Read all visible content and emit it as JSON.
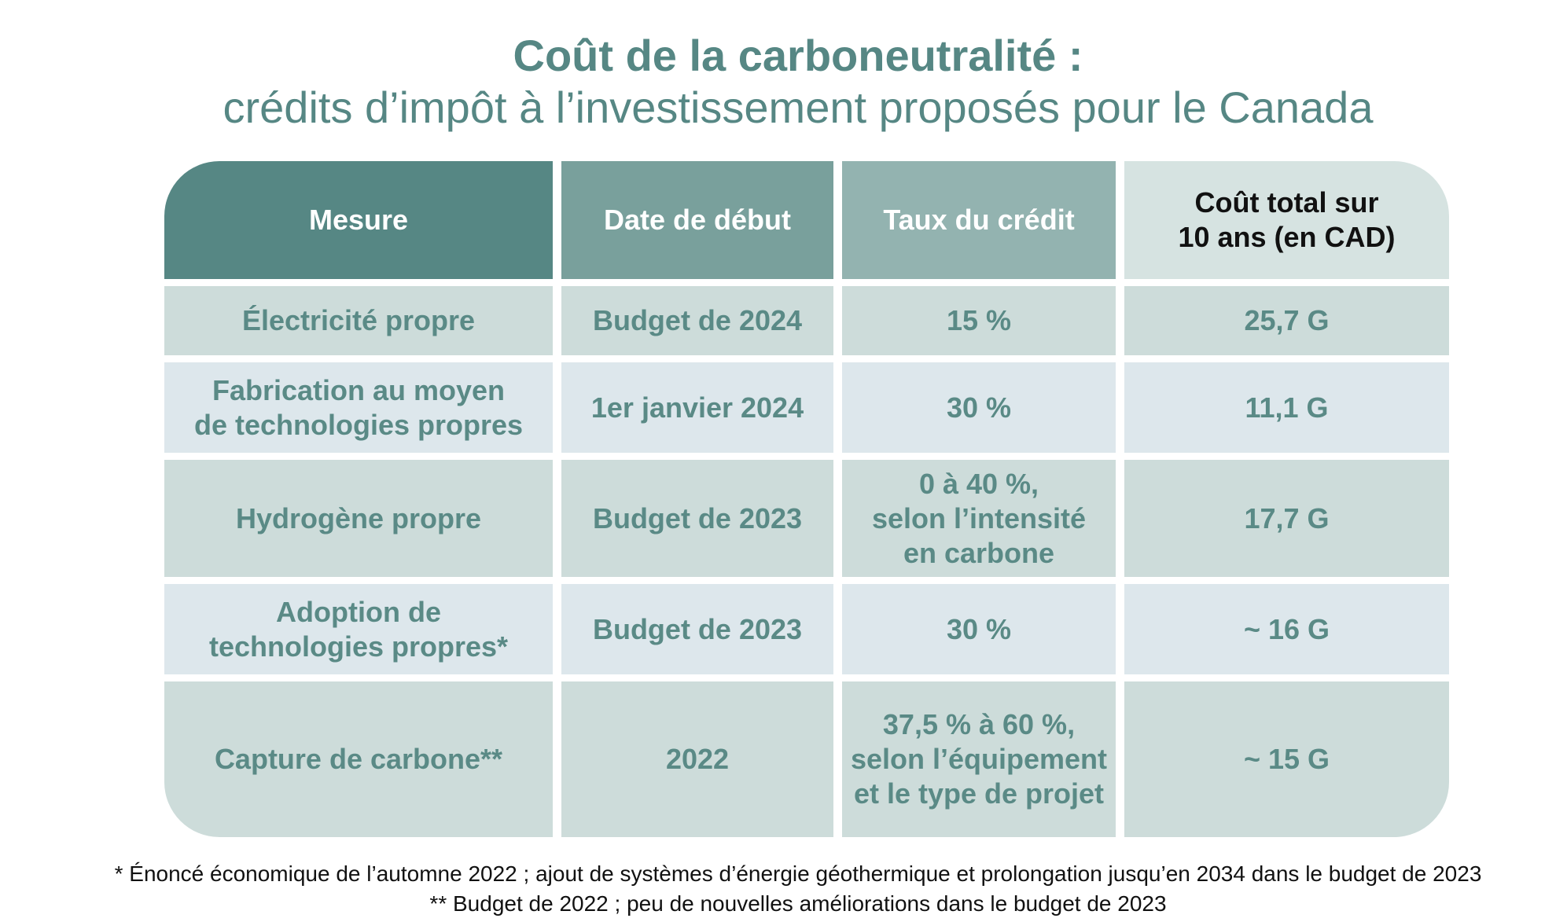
{
  "title": {
    "line1": "Coût de la carboneutralité :",
    "line2": "crédits d’impôt à l’investissement proposés pour le Canada"
  },
  "table": {
    "headers": [
      "Mesure",
      "Date de début",
      "Taux du crédit",
      "Coût total sur\n10 ans (en CAD)"
    ],
    "rows": [
      [
        "Électricité propre",
        "Budget de 2024",
        "15 %",
        "25,7 G"
      ],
      [
        "Fabrication au moyen\nde technologies propres",
        "1er janvier 2024",
        "30 %",
        "11,1 G"
      ],
      [
        "Hydrogène propre",
        "Budget de 2023",
        "0 à 40 %,\nselon l’intensité\nen carbone",
        "17,7 G"
      ],
      [
        "Adoption de\ntechnologies propres*",
        "Budget de 2023",
        "30 %",
        "~ 16 G"
      ],
      [
        "Capture de carbone**",
        "2022",
        "37,5 % à 60 %,\nselon l’équipement\net le type de projet",
        "~ 15 G"
      ]
    ]
  },
  "footnotes": [
    "* Énoncé économique de l’automne 2022 ; ajout de systèmes d’énergie géothermique et prolongation jusqu’en 2034 dans le budget de 2023",
    "** Budget de 2022 ; peu de nouvelles améliorations dans le budget de 2023"
  ],
  "colors": {
    "title": "#568784",
    "header_mesure": "#568784",
    "header_date": "#79a09c",
    "header_taux": "#93b3b0",
    "header_cout": "#d6e3e1",
    "row_dark": "#cddcda",
    "row_light": "#dde7ec",
    "body_text": "#5a8a86"
  }
}
